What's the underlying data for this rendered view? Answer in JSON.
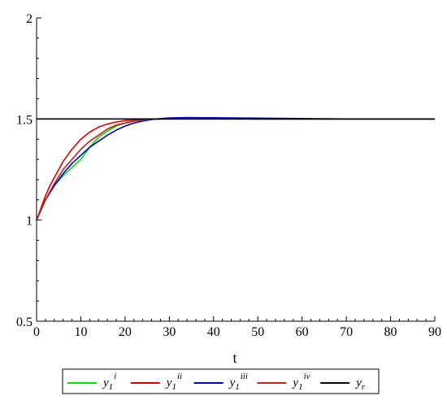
{
  "chart_data": {
    "type": "line",
    "title": "",
    "xlabel": "t",
    "ylabel": "",
    "xlim": [
      0,
      90
    ],
    "ylim": [
      0.5,
      2
    ],
    "x_ticks": [
      "0",
      "10",
      "20",
      "30",
      "40",
      "50",
      "60",
      "70",
      "80",
      "90"
    ],
    "y_ticks": [
      "0.5",
      "1",
      "1.5",
      "2"
    ],
    "grid": false,
    "legend_position": "bottom",
    "series": [
      {
        "name": "y1^i",
        "label_base": "y",
        "label_sub": "1",
        "label_sup": "i",
        "color": "#00e000",
        "points": [
          [
            0,
            1.0
          ],
          [
            2,
            1.1
          ],
          [
            4,
            1.17
          ],
          [
            6,
            1.22
          ],
          [
            8,
            1.26
          ],
          [
            10,
            1.3
          ],
          [
            12,
            1.36
          ],
          [
            14,
            1.41
          ],
          [
            16,
            1.44
          ],
          [
            18,
            1.465
          ],
          [
            20,
            1.48
          ],
          [
            22,
            1.49
          ],
          [
            25,
            1.497
          ],
          [
            28,
            1.5
          ],
          [
            32,
            1.502
          ],
          [
            40,
            1.502
          ],
          [
            50,
            1.5
          ],
          [
            60,
            1.5
          ],
          [
            90,
            1.5
          ]
        ]
      },
      {
        "name": "y1^ii",
        "label_base": "y",
        "label_sub": "1",
        "label_sup": "ii",
        "color": "#e00000",
        "points": [
          [
            0,
            1.0
          ],
          [
            1,
            1.06
          ],
          [
            2,
            1.12
          ],
          [
            3,
            1.17
          ],
          [
            4,
            1.21
          ],
          [
            5,
            1.25
          ],
          [
            6,
            1.29
          ],
          [
            7,
            1.32
          ],
          [
            8,
            1.35
          ],
          [
            9,
            1.375
          ],
          [
            10,
            1.4
          ],
          [
            12,
            1.435
          ],
          [
            14,
            1.46
          ],
          [
            16,
            1.475
          ],
          [
            18,
            1.485
          ],
          [
            20,
            1.492
          ],
          [
            23,
            1.497
          ],
          [
            26,
            1.5
          ],
          [
            30,
            1.5
          ],
          [
            40,
            1.5
          ],
          [
            60,
            1.5
          ],
          [
            90,
            1.5
          ]
        ]
      },
      {
        "name": "y1^iii",
        "label_base": "y",
        "label_sub": "1",
        "label_sup": "iii",
        "color": "#0000d0",
        "points": [
          [
            0,
            1.0
          ],
          [
            2,
            1.1
          ],
          [
            4,
            1.17
          ],
          [
            6,
            1.23
          ],
          [
            8,
            1.28
          ],
          [
            10,
            1.32
          ],
          [
            12,
            1.36
          ],
          [
            14,
            1.39
          ],
          [
            16,
            1.42
          ],
          [
            18,
            1.445
          ],
          [
            20,
            1.465
          ],
          [
            22,
            1.48
          ],
          [
            24,
            1.49
          ],
          [
            26,
            1.497
          ],
          [
            28,
            1.502
          ],
          [
            30,
            1.505
          ],
          [
            34,
            1.507
          ],
          [
            40,
            1.506
          ],
          [
            50,
            1.504
          ],
          [
            60,
            1.502
          ],
          [
            70,
            1.5
          ],
          [
            90,
            1.5
          ]
        ]
      },
      {
        "name": "y1^iv",
        "label_base": "y",
        "label_sub": "1",
        "label_sup": "iv",
        "color": "#c81e1e",
        "points": [
          [
            0,
            1.0
          ],
          [
            2,
            1.1
          ],
          [
            4,
            1.18
          ],
          [
            6,
            1.25
          ],
          [
            8,
            1.3
          ],
          [
            10,
            1.35
          ],
          [
            12,
            1.39
          ],
          [
            14,
            1.42
          ],
          [
            16,
            1.45
          ],
          [
            18,
            1.47
          ],
          [
            20,
            1.48
          ],
          [
            22,
            1.49
          ],
          [
            25,
            1.497
          ],
          [
            28,
            1.5
          ],
          [
            32,
            1.502
          ],
          [
            40,
            1.502
          ],
          [
            50,
            1.5
          ],
          [
            60,
            1.5
          ],
          [
            90,
            1.5
          ]
        ]
      },
      {
        "name": "yr",
        "label_base": "y",
        "label_sub": "r",
        "label_sup": "",
        "color": "#000000",
        "points": [
          [
            0,
            1.5
          ],
          [
            90,
            1.5
          ]
        ]
      }
    ]
  }
}
